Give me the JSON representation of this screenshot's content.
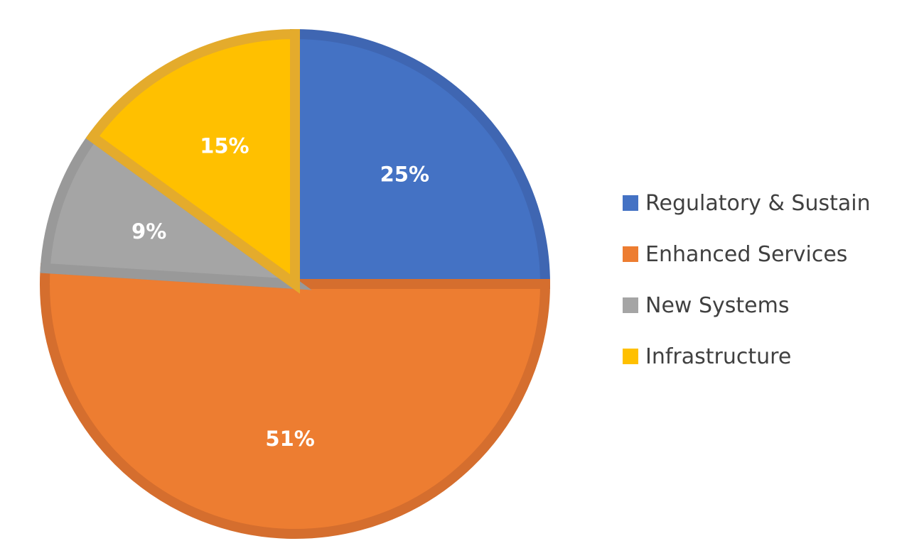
{
  "chart_data": {
    "type": "pie",
    "title": "",
    "categories": [
      "Regulatory & Sustain",
      "Enhanced Services",
      "New Systems",
      "Infrastructure"
    ],
    "values": [
      25,
      51,
      9,
      15
    ],
    "labels": [
      "25%",
      "51%",
      "9%",
      "15%"
    ],
    "colors": [
      "#4472C4",
      "#ED7D31",
      "#A5A5A5",
      "#FFC000"
    ],
    "border_colors": [
      "#3F66B2",
      "#D56E2E",
      "#999999",
      "#E4AB2C"
    ],
    "legend_position": "right",
    "start_angle_deg": 0,
    "direction": "clockwise"
  }
}
